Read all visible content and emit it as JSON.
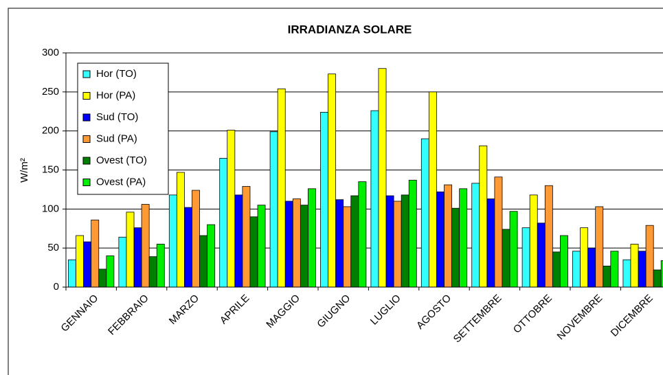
{
  "chart_data": {
    "type": "bar",
    "title": "IRRADIANZA SOLARE",
    "y_label": "W/m²",
    "categories": [
      "GENNAIO",
      "FEBBRAIO",
      "MARZO",
      "APRILE",
      "MAGGIO",
      "GIUGNO",
      "LUGLIO",
      "AGOSTO",
      "SETTEMBRE",
      "OTTOBRE",
      "NOVEMBRE",
      "DICEMBRE"
    ],
    "series": [
      {
        "name": "Hor (TO)",
        "color": "#33ffff",
        "values": [
          35,
          64,
          118,
          165,
          199,
          224,
          226,
          190,
          133,
          76,
          46,
          35
        ]
      },
      {
        "name": "Hor (PA)",
        "color": "#ffff00",
        "values": [
          66,
          96,
          147,
          201,
          254,
          273,
          280,
          250,
          181,
          118,
          76,
          55
        ]
      },
      {
        "name": "Sud (TO)",
        "color": "#0000ff",
        "values": [
          58,
          76,
          102,
          118,
          110,
          112,
          117,
          122,
          113,
          82,
          50,
          46
        ]
      },
      {
        "name": "Sud (PA)",
        "color": "#ff9933",
        "values": [
          86,
          106,
          124,
          129,
          113,
          103,
          110,
          131,
          141,
          130,
          103,
          79
        ]
      },
      {
        "name": "Ovest (TO)",
        "color": "#008000",
        "values": [
          23,
          39,
          66,
          90,
          105,
          117,
          118,
          101,
          74,
          45,
          27,
          22
        ]
      },
      {
        "name": "Ovest (PA)",
        "color": "#00ee00",
        "values": [
          40,
          55,
          80,
          105,
          126,
          135,
          137,
          126,
          97,
          66,
          46,
          34
        ]
      }
    ],
    "ylim": [
      0,
      300
    ],
    "yticks": [
      0,
      50,
      100,
      150,
      200,
      250,
      300
    ],
    "grid": true
  }
}
